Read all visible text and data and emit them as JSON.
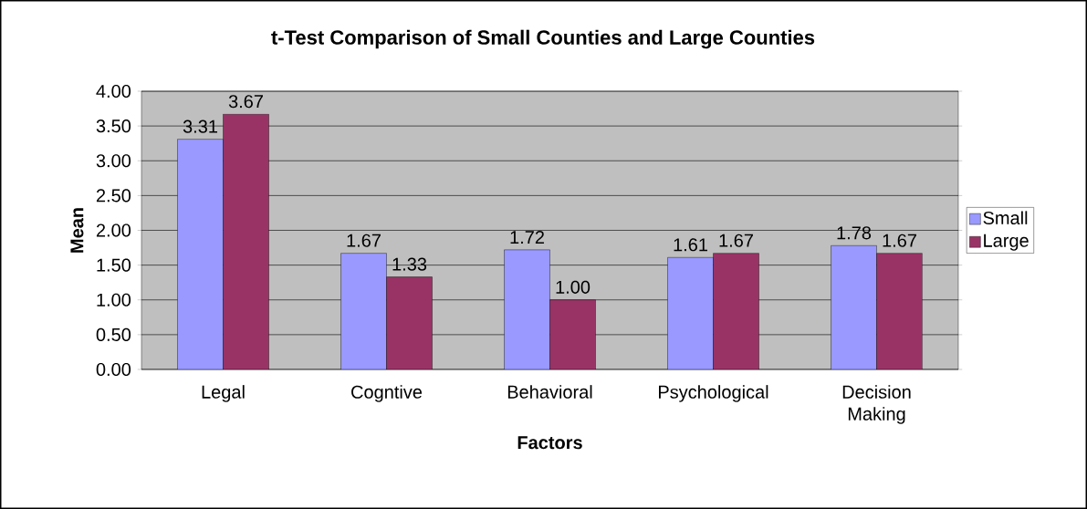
{
  "chart_data": {
    "type": "bar",
    "title": "t-Test Comparison of Small Counties and Large Counties",
    "xlabel": "Factors",
    "ylabel": "Mean",
    "categories": [
      "Legal",
      "Cogntive",
      "Behavioral",
      "Psychological",
      "Decision Making"
    ],
    "series": [
      {
        "name": "Small",
        "color": "#9999ff",
        "values": [
          3.31,
          1.67,
          1.72,
          1.61,
          1.78
        ],
        "value_labels": [
          "3.31",
          "1.67",
          "1.72",
          "1.61",
          "1.78"
        ]
      },
      {
        "name": "Large",
        "color": "#993366",
        "values": [
          3.67,
          1.33,
          1.0,
          1.67,
          1.67
        ],
        "value_labels": [
          "3.67",
          "1.33",
          "1.00",
          "1.67",
          "1.67"
        ]
      }
    ],
    "ylim": [
      0,
      4
    ],
    "yticks": [
      {
        "value": 0,
        "label": "0.00"
      },
      {
        "value": 0.5,
        "label": "0.50"
      },
      {
        "value": 1,
        "label": "1.00"
      },
      {
        "value": 1.5,
        "label": "1.50"
      },
      {
        "value": 2,
        "label": "2.00"
      },
      {
        "value": 2.5,
        "label": "2.50"
      },
      {
        "value": 3,
        "label": "3.00"
      },
      {
        "value": 3.5,
        "label": "3.50"
      },
      {
        "value": 4,
        "label": "4.00"
      }
    ],
    "grid": "y",
    "legend": "right"
  }
}
